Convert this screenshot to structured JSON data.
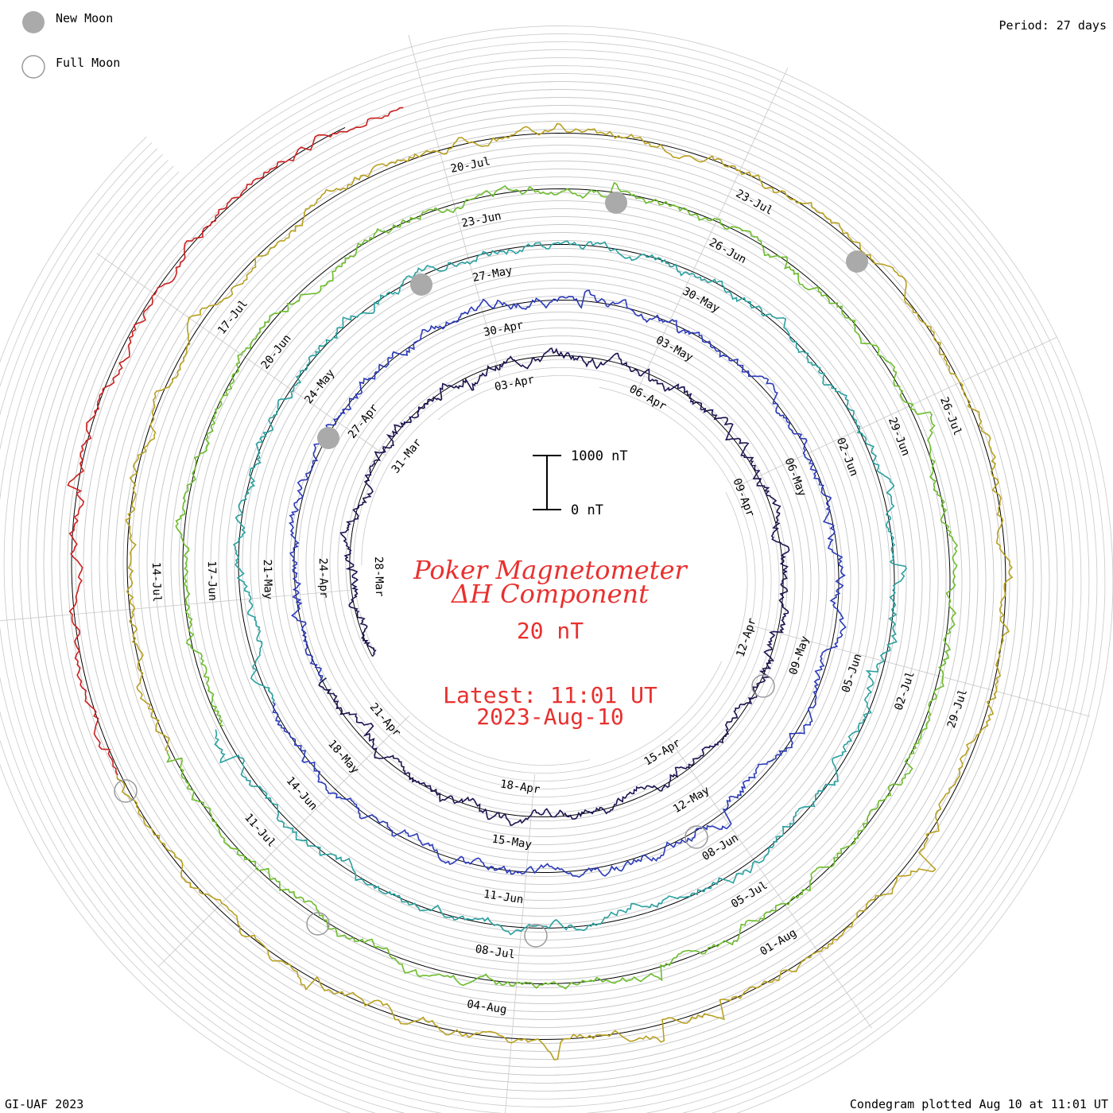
{
  "chart_data": {
    "type": "line",
    "title_line1": "Poker Magnetometer",
    "title_line2": "ΔH Component",
    "baseline_label": "20 nT",
    "latest_label": "Latest: 11:01 UT",
    "latest_date": "2023-Aug-10",
    "period_label": "Period: 27 days",
    "scale_bar": {
      "top_label": "1000 nT",
      "bottom_label": "0 nT",
      "top_value": 1000,
      "bottom_value": 0
    },
    "legend": [
      {
        "label": "New Moon",
        "style": "filled",
        "color": "#aaaaaa"
      },
      {
        "label": "Full Moon",
        "style": "open",
        "color": "#999999"
      }
    ],
    "series": [
      {
        "color": "#1a1450",
        "dates": [
          "28-Mar",
          "31-Mar",
          "03-Apr",
          "06-Apr",
          "09-Apr",
          "12-Apr",
          "15-Apr",
          "18-Apr",
          "21-Apr"
        ]
      },
      {
        "color": "#2a3ab8",
        "dates": [
          "24-Apr",
          "27-Apr",
          "30-Apr",
          "03-May",
          "06-May",
          "09-May",
          "12-May",
          "15-May",
          "18-May"
        ]
      },
      {
        "color": "#2aa0a0",
        "dates": [
          "21-May",
          "24-May",
          "27-May",
          "30-May",
          "02-Jun",
          "05-Jun",
          "08-Jun",
          "11-Jun",
          "14-Jun"
        ]
      },
      {
        "color": "#6cbc2c",
        "dates": [
          "17-Jun",
          "20-Jun",
          "23-Jun",
          "26-Jun",
          "29-Jun",
          "02-Jul",
          "05-Jul",
          "08-Jul",
          "11-Jul"
        ]
      },
      {
        "color": "#b8a020",
        "dates": [
          "14-Jul",
          "17-Jul",
          "20-Jul",
          "23-Jul",
          "26-Jul",
          "29-Jul",
          "01-Aug",
          "04-Aug"
        ]
      },
      {
        "color": "#cc2020",
        "dates": []
      }
    ],
    "new_moons": [
      "20-Apr",
      "19-May",
      "18-Jun",
      "17-Jul"
    ],
    "full_moons": [
      "06-Apr",
      "05-May",
      "04-Jun",
      "03-Jul",
      "01-Aug"
    ]
  },
  "footer": {
    "left": "GI-UAF 2023",
    "right": "Condegram plotted Aug 10 at 11:01 UT"
  }
}
